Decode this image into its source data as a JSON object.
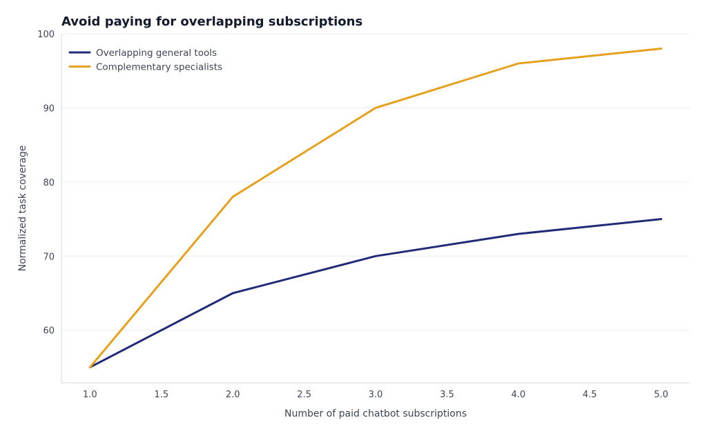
{
  "chart_data": {
    "type": "line",
    "title": "Avoid paying for overlapping subscriptions",
    "xlabel": "Number of paid chatbot subscriptions",
    "ylabel": "Normalized task coverage",
    "xlim": [
      0.8,
      5.2
    ],
    "ylim": [
      52.9,
      100
    ],
    "xticks": [
      1.0,
      1.5,
      2.0,
      2.5,
      3.0,
      3.5,
      4.0,
      4.5,
      5.0
    ],
    "xtick_labels": [
      "1.0",
      "1.5",
      "2.0",
      "2.5",
      "3.0",
      "3.5",
      "4.0",
      "4.5",
      "5.0"
    ],
    "yticks": [
      60,
      70,
      80,
      90,
      100
    ],
    "ytick_labels": [
      "60",
      "70",
      "80",
      "90",
      "100"
    ],
    "grid": "horizontal",
    "legend_position": "top-left",
    "series": [
      {
        "name": "Overlapping general tools",
        "color": "#1f2a78",
        "x": [
          1,
          2,
          3,
          4,
          5
        ],
        "y": [
          55,
          65,
          70,
          73,
          75
        ]
      },
      {
        "name": "Complementary specialists",
        "color": "#e6a11c",
        "x": [
          1,
          2,
          3,
          4,
          5
        ],
        "y": [
          55,
          78,
          90,
          96,
          98
        ]
      }
    ]
  }
}
